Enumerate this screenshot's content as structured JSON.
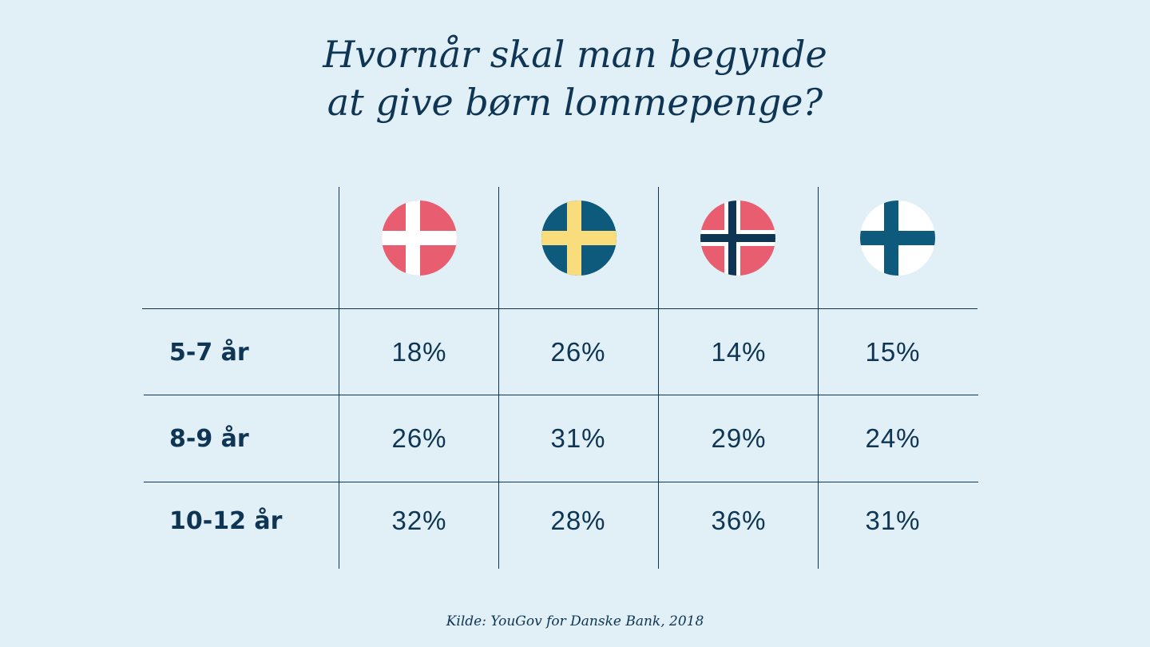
{
  "chart_data": {
    "type": "table",
    "title_lines": [
      "Hvornår skal man begynde",
      "at give børn lommepenge?"
    ],
    "columns": [
      {
        "flag": "denmark-flag-icon",
        "colors": {
          "field": "#e85d6f",
          "cross": "#ffffff"
        }
      },
      {
        "flag": "sweden-flag-icon",
        "colors": {
          "field": "#0e5a7c",
          "cross": "#f9dd7d"
        }
      },
      {
        "flag": "norway-flag-icon",
        "colors": {
          "field": "#e85d6f",
          "border": "#ffffff",
          "cross": "#0e3553"
        }
      },
      {
        "flag": "finland-flag-icon",
        "colors": {
          "field": "#ffffff",
          "cross": "#0e5a7c"
        }
      }
    ],
    "rows": [
      {
        "label": "5-7 år",
        "values": [
          "18%",
          "26%",
          "14%",
          "15%"
        ]
      },
      {
        "label": "8-9 år",
        "values": [
          "26%",
          "31%",
          "29%",
          "24%"
        ]
      },
      {
        "label": "10-12 år",
        "values": [
          "32%",
          "28%",
          "36%",
          "31%"
        ]
      }
    ],
    "source": "Kilde: YouGov for Danske Bank, 2018"
  },
  "colors": {
    "background": "#e1eff7",
    "text": "#0e3553"
  }
}
